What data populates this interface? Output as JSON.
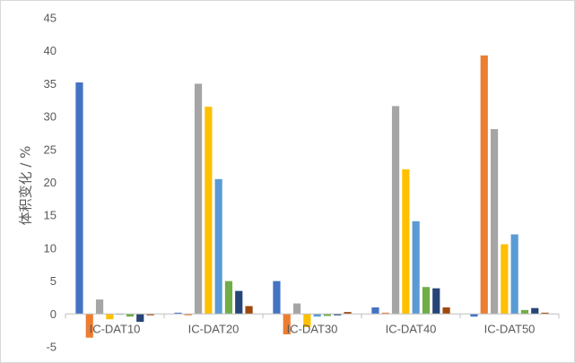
{
  "chart_data": {
    "type": "bar",
    "title": "",
    "xlabel": "",
    "ylabel": "体积变化 / %",
    "categories": [
      "IC-DAT10",
      "IC-DAT20",
      "IC-DAT30",
      "IC-DAT40",
      "IC-DAT50"
    ],
    "ylim": [
      -5,
      45
    ],
    "yticks": [
      -5,
      0,
      5,
      10,
      15,
      20,
      25,
      30,
      35,
      40,
      45
    ],
    "grid": false,
    "legend": "none",
    "series": [
      {
        "color": "#4472C4",
        "values": [
          35.2,
          0.2,
          5.0,
          1.0,
          -0.4
        ]
      },
      {
        "color": "#ED7D31",
        "values": [
          -3.6,
          -0.2,
          -3.1,
          0.2,
          39.3
        ]
      },
      {
        "color": "#A5A5A5",
        "values": [
          2.2,
          35.0,
          1.6,
          31.6,
          28.1
        ]
      },
      {
        "color": "#FFC000",
        "values": [
          -0.8,
          31.5,
          -2.0,
          22.0,
          10.6
        ]
      },
      {
        "color": "#5B9BD5",
        "values": [
          -0.1,
          20.5,
          -0.4,
          14.1,
          12.1
        ]
      },
      {
        "color": "#70AD47",
        "values": [
          -0.4,
          5.0,
          -0.3,
          4.1,
          0.6
        ]
      },
      {
        "color": "#264478",
        "values": [
          -1.2,
          3.5,
          -0.2,
          3.9,
          0.9
        ]
      },
      {
        "color": "#9E480E",
        "values": [
          -0.2,
          1.2,
          0.3,
          1.0,
          0.2
        ]
      }
    ]
  }
}
